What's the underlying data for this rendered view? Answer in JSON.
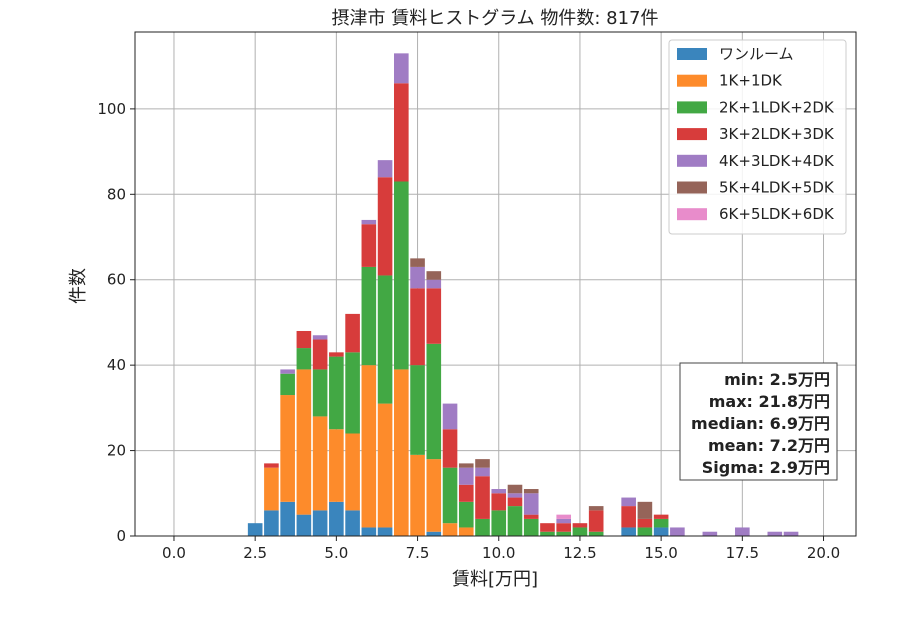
{
  "chart_data": {
    "type": "bar",
    "title": "摂津市 賃料ヒストグラム  物件数: 817件",
    "xlabel": "賃料[万円]",
    "ylabel": "件数",
    "xlim": [
      -1.2,
      21.0
    ],
    "ylim": [
      0,
      118
    ],
    "xticks": [
      0.0,
      2.5,
      5.0,
      7.5,
      10.0,
      12.5,
      15.0,
      17.5,
      20.0
    ],
    "xtick_labels": [
      "0.0",
      "2.5",
      "5.0",
      "7.5",
      "10.0",
      "12.5",
      "15.0",
      "17.5",
      "20.0"
    ],
    "yticks": [
      0,
      20,
      40,
      60,
      80,
      100
    ],
    "ytick_labels": [
      "0",
      "20",
      "40",
      "60",
      "80",
      "100"
    ],
    "grid": true,
    "legend_position": "top-right",
    "stacked": true,
    "bin_width": 0.5,
    "x": [
      2.5,
      3.0,
      3.5,
      4.0,
      4.5,
      5.0,
      5.5,
      6.0,
      6.5,
      7.0,
      7.5,
      8.0,
      8.5,
      9.0,
      9.5,
      10.0,
      10.5,
      11.0,
      11.5,
      12.0,
      12.5,
      13.0,
      13.5,
      14.0,
      14.5,
      15.0,
      15.5,
      16.5,
      17.5,
      18.5,
      19.0
    ],
    "series": [
      {
        "name": "ワンルーム",
        "color": "#3a85bd",
        "values": [
          3,
          6,
          8,
          5,
          6,
          8,
          6,
          2,
          2,
          0,
          0,
          1,
          0,
          0,
          0,
          0,
          0,
          0,
          0,
          0,
          0,
          0,
          0,
          2,
          0,
          2,
          0,
          0,
          0,
          0,
          0
        ]
      },
      {
        "name": "1K+1DK",
        "color": "#fd8b2b",
        "values": [
          0,
          10,
          25,
          34,
          22,
          17,
          18,
          38,
          29,
          39,
          19,
          17,
          3,
          2,
          0,
          0,
          0,
          0,
          0,
          0,
          0,
          0,
          0,
          0,
          0,
          0,
          0,
          0,
          0,
          0,
          0
        ]
      },
      {
        "name": "2K+1LDK+2DK",
        "color": "#42a844",
        "values": [
          0,
          0,
          5,
          5,
          11,
          17,
          19,
          23,
          30,
          44,
          21,
          27,
          13,
          6,
          4,
          6,
          7,
          4,
          1,
          1,
          2,
          1,
          0,
          0,
          2,
          2,
          0,
          0,
          0,
          0,
          0
        ]
      },
      {
        "name": "3K+2LDK+3DK",
        "color": "#d73c3b",
        "values": [
          0,
          1,
          0,
          4,
          7,
          1,
          9,
          10,
          23,
          23,
          18,
          13,
          9,
          4,
          10,
          4,
          2,
          1,
          2,
          2,
          1,
          5,
          0,
          5,
          2,
          1,
          0,
          0,
          0,
          0,
          0
        ]
      },
      {
        "name": "4K+3LDK+4DK",
        "color": "#a07cc4",
        "values": [
          0,
          0,
          1,
          0,
          1,
          0,
          0,
          1,
          4,
          7,
          5,
          2,
          6,
          4,
          2,
          1,
          1,
          5,
          0,
          1,
          0,
          0,
          0,
          2,
          0,
          0,
          2,
          1,
          2,
          1,
          1
        ]
      },
      {
        "name": "5K+4LDK+5DK",
        "color": "#956459",
        "values": [
          0,
          0,
          0,
          0,
          0,
          0,
          0,
          0,
          0,
          0,
          2,
          2,
          0,
          1,
          2,
          0,
          2,
          1,
          0,
          0,
          0,
          1,
          0,
          0,
          4,
          0,
          0,
          0,
          0,
          0,
          0
        ]
      },
      {
        "name": "6K+5LDK+6DK",
        "color": "#e88ccb",
        "values": [
          0,
          0,
          0,
          0,
          0,
          0,
          0,
          0,
          0,
          0,
          0,
          0,
          0,
          0,
          0,
          0,
          0,
          0,
          0,
          1,
          0,
          0,
          0,
          0,
          0,
          0,
          0,
          0,
          0,
          0,
          0
        ]
      }
    ],
    "stats": [
      "min: 2.5万円",
      "max: 21.8万円",
      "median: 6.9万円",
      "mean: 7.2万円",
      "Sigma: 2.9万円"
    ]
  }
}
